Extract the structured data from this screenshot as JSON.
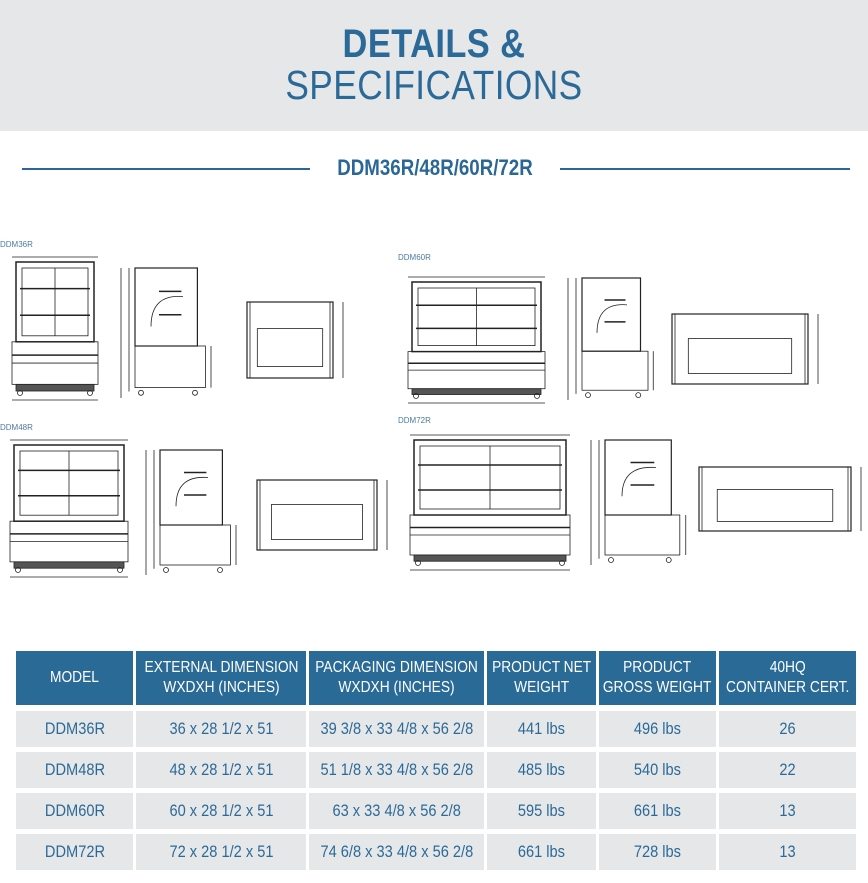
{
  "header": {
    "title_line1": "DETAILS &",
    "title_line2": "SPECIFICATIONS"
  },
  "section": {
    "subtitle": "DDM36R/48R/60R/72R"
  },
  "drawings": [
    {
      "model": "DDM36R"
    },
    {
      "model": "DDM60R"
    },
    {
      "model": "DDM48R"
    },
    {
      "model": "DDM72R"
    }
  ],
  "colors": {
    "brand": "#2a6a96",
    "row_bg": "#e6e7e8",
    "header_bg": "#e6e7e8"
  },
  "table": {
    "headers": [
      [
        "MODEL",
        ""
      ],
      [
        "EXTERNAL DIMENSION",
        "WXDXH (INCHES)"
      ],
      [
        "PACKAGING DIMENSION",
        "WXDXH (INCHES)"
      ],
      [
        "PRODUCT NET",
        "WEIGHT"
      ],
      [
        "PRODUCT",
        "GROSS WEIGHT"
      ],
      [
        "40HQ",
        "CONTAINER CERT."
      ]
    ],
    "rows": [
      [
        "DDM36R",
        "36 x 28 1/2 x 51",
        "39 3/8 x 33 4/8 x 56 2/8",
        "441 lbs",
        "496 lbs",
        "26"
      ],
      [
        "DDM48R",
        "48 x 28 1/2 x 51",
        "51 1/8 x 33 4/8 x 56 2/8",
        "485 lbs",
        "540 lbs",
        "22"
      ],
      [
        "DDM60R",
        "60 x 28 1/2 x 51",
        "63 x 33 4/8 x 56 2/8",
        "595 lbs",
        "661 lbs",
        "13"
      ],
      [
        "DDM72R",
        "72 x 28 1/2 x 51",
        "74 6/8 x 33 4/8 x 56 2/8",
        "661 lbs",
        "728 lbs",
        "13"
      ]
    ]
  }
}
